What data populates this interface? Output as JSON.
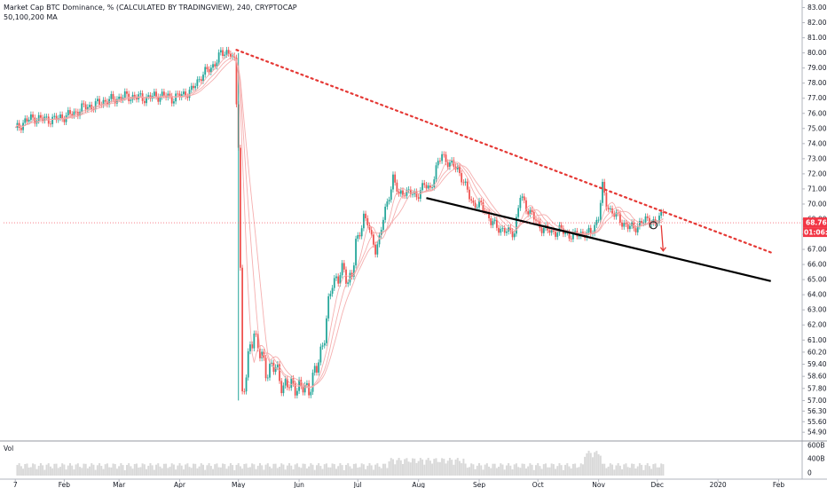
{
  "header": {
    "title": "Market Cap BTC Dominance, % (CALCULATED BY TRADINGVIEW), 240, CRYPTOCAP",
    "indicator": "50,100,200 MA"
  },
  "volume_label": "Vol",
  "price_tags": {
    "last_price": "68.76",
    "countdown": "01:06:0",
    "colors": {
      "last_price": "#f23645",
      "countdown": "#f23645"
    }
  },
  "colors": {
    "up": "#26a69a",
    "down": "#ef5350",
    "ma": "#f4a6a6",
    "resistance": "#e53935",
    "support": "#000000",
    "volume": "#d9d9d9",
    "arrow": "#e53935"
  },
  "chart_data": {
    "type": "line",
    "title": "Market Cap BTC Dominance, % (CALCULATED BY TRADINGVIEW), 240, CRYPTOCAP",
    "ylim": [
      54.5,
      83.5
    ],
    "y_ticks": [
      83.0,
      82.0,
      81.0,
      80.0,
      79.0,
      78.0,
      77.0,
      76.0,
      75.0,
      74.0,
      73.0,
      72.0,
      71.0,
      70.0,
      69.0,
      68.0,
      67.0,
      66.0,
      65.0,
      64.0,
      63.0,
      62.0,
      61.0,
      60.2,
      59.4,
      58.6,
      57.8,
      57.0,
      56.3,
      55.6,
      54.9
    ],
    "y_tick_labels": [
      "83.00",
      "82.00",
      "81.00",
      "80.00",
      "79.00",
      "78.00",
      "77.00",
      "76.00",
      "75.00",
      "74.00",
      "73.00",
      "72.00",
      "71.00",
      "70.00",
      "69.00",
      "68.00",
      "67.00",
      "66.00",
      "65.00",
      "64.00",
      "63.00",
      "62.00",
      "61.00",
      "60.20",
      "59.40",
      "58.60",
      "57.80",
      "57.00",
      "56.30",
      "55.60",
      "54.90"
    ],
    "x_ticks": [
      {
        "label": "7",
        "t": 0
      },
      {
        "label": "Feb",
        "t": 25
      },
      {
        "label": "Mar",
        "t": 53
      },
      {
        "label": "Apr",
        "t": 84
      },
      {
        "label": "May",
        "t": 114
      },
      {
        "label": "Jun",
        "t": 145
      },
      {
        "label": "Jul",
        "t": 175
      },
      {
        "label": "Aug",
        "t": 206
      },
      {
        "label": "Sep",
        "t": 237
      },
      {
        "label": "Oct",
        "t": 267
      },
      {
        "label": "Nov",
        "t": 298
      },
      {
        "label": "Dec",
        "t": 328
      },
      {
        "label": "2020",
        "t": 359
      },
      {
        "label": "Feb",
        "t": 390
      }
    ],
    "x_domain": [
      -6,
      402
    ],
    "series": [
      {
        "type": "price",
        "x": [
          0,
          5,
          10,
          15,
          20,
          25,
          30,
          35,
          40,
          45,
          50,
          55,
          60,
          65,
          70,
          75,
          80,
          85,
          90,
          95,
          100,
          105,
          108,
          110,
          112,
          114,
          116,
          118,
          120,
          122,
          125,
          128,
          131,
          134,
          137,
          140,
          143,
          146,
          150,
          154,
          158,
          162,
          166,
          170,
          172,
          174,
          176,
          178,
          180,
          182,
          184,
          186,
          188,
          190,
          193,
          196,
          199,
          202,
          205,
          207,
          209,
          212,
          215,
          218,
          222,
          226,
          230,
          234,
          237,
          240,
          243,
          246,
          249,
          252,
          255,
          258,
          261,
          264,
          267,
          270,
          274,
          278,
          282,
          286,
          290,
          294,
          298,
          300,
          302,
          304,
          307,
          310,
          313,
          316,
          319,
          322,
          325,
          327,
          329,
          331
        ],
        "values": [
          74.9,
          75.5,
          75.7,
          75.6,
          75.6,
          75.8,
          76.0,
          76.4,
          76.5,
          76.8,
          76.9,
          77.1,
          77.1,
          77.0,
          77.1,
          77.2,
          77.0,
          77.2,
          77.5,
          78.5,
          79.0,
          79.9,
          80.1,
          80.0,
          79.3,
          74.0,
          57.5,
          58.5,
          60.5,
          61.7,
          60.0,
          59.0,
          59.3,
          58.8,
          58.0,
          57.9,
          58.1,
          57.7,
          57.9,
          59.0,
          61.5,
          64.8,
          65.5,
          65.0,
          65.5,
          67.2,
          68.0,
          69.3,
          68.8,
          67.6,
          67.0,
          67.8,
          69.0,
          70.0,
          71.8,
          70.5,
          70.9,
          70.7,
          70.5,
          71.0,
          71.2,
          71.0,
          72.3,
          73.3,
          72.6,
          72.4,
          71.1,
          70.0,
          69.9,
          69.7,
          68.8,
          68.5,
          68.3,
          68.1,
          68.2,
          70.5,
          69.8,
          69.3,
          68.6,
          68.4,
          68.1,
          68.3,
          68.0,
          67.9,
          68.1,
          68.0,
          69.2,
          71.1,
          70.0,
          69.6,
          69.2,
          68.8,
          68.5,
          68.4,
          68.7,
          68.9,
          69.0,
          68.6,
          69.1,
          69.4
        ]
      }
    ],
    "moving_averages": [
      50,
      100,
      200
    ],
    "volume_axis_labels": [
      "600B",
      "400B",
      "0"
    ],
    "annotations": [
      {
        "kind": "dotted-trendline",
        "from": {
          "t": 113,
          "v": 80.2
        },
        "to": {
          "t": 386,
          "v": 66.8
        }
      },
      {
        "kind": "solid-trendline",
        "from": {
          "t": 210,
          "v": 70.4
        },
        "to": {
          "t": 386,
          "v": 64.9
        }
      },
      {
        "kind": "circle-marker",
        "at": {
          "t": 326,
          "v": 68.6
        }
      },
      {
        "kind": "down-arrow",
        "from": {
          "t": 330,
          "v": 68.6
        },
        "to": {
          "t": 331,
          "v": 66.9
        }
      }
    ]
  }
}
